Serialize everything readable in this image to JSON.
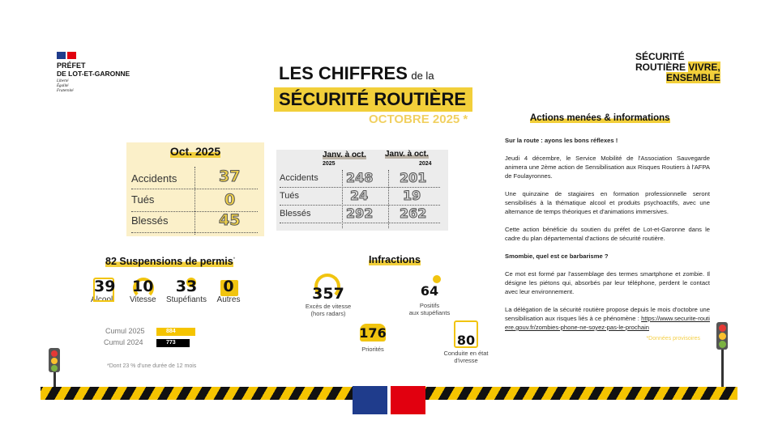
{
  "header": {
    "prefet_line1": "PRÉFET",
    "prefet_line2": "DE LOT-ET-GARONNE",
    "motto": [
      "Liberté",
      "Égalité",
      "Fraternité"
    ],
    "title_line1": "LES CHIFFRES",
    "title_small": "de la",
    "title_line2": "SÉCURITÉ ROUTIÈRE",
    "period": "OCTOBRE 2025 *",
    "logo": {
      "line1": "SÉCURITÉ",
      "line2": "ROUTIÈRE",
      "line2b": "VIVRE,",
      "line3": "ENSEMBLE"
    }
  },
  "month_table": {
    "title": "Oct. 2025",
    "rows": [
      {
        "label": "Accidents",
        "value": "37"
      },
      {
        "label": "Tués",
        "value": "0"
      },
      {
        "label": "Blessés",
        "value": "45"
      }
    ]
  },
  "cumul_table": {
    "col1": "Janv. à oct.",
    "col1_year": "2025",
    "col2": "Janv. à oct.",
    "col2_year": "2024",
    "rows": [
      {
        "label": "Accidents",
        "v2025": "248",
        "v2024": "201"
      },
      {
        "label": "Tués",
        "v2025": "24",
        "v2024": "19"
      },
      {
        "label": "Blessés",
        "v2025": "292",
        "v2024": "262"
      }
    ]
  },
  "suspensions": {
    "title": "82 Suspensions de permis",
    "asterisk": "*",
    "items": [
      {
        "value": "39",
        "label": "Alcool",
        "icon": "bottles-icon"
      },
      {
        "value": "10",
        "label": "Vitesse",
        "icon": "speedometer-icon"
      },
      {
        "value": "33",
        "label": "Stupéfiants",
        "icon": "syringe-icon"
      },
      {
        "value": "0",
        "label": "Autres",
        "icon": "id-card-icon"
      }
    ],
    "cumul": [
      {
        "label": "Cumul 2025",
        "value": "884",
        "color": "#f5c400"
      },
      {
        "label": "Cumul 2024",
        "value": "773",
        "color": "#000000"
      }
    ],
    "footnote": "*Dont 23 % d'une durée de 12 mois"
  },
  "infractions": {
    "title": "Infractions",
    "items": [
      {
        "value": "357",
        "label1": "Excès de vitesse",
        "label2": "(hors radars)"
      },
      {
        "value": "64",
        "label1": "Positifs",
        "label2": "aux stupéfiants"
      },
      {
        "value": "176",
        "label1": "Priorités",
        "label2": ""
      },
      {
        "value": "80",
        "label1": "Conduite en état",
        "label2": "d'ivresse"
      }
    ]
  },
  "actions": {
    "title": "Actions menées & informations",
    "h1": "Sur la route : ayons les bons réflexes !",
    "p1": "Jeudi 4 décembre, le Service Mobilité de l'Association Sauvegarde animera une 2ème action de Sensibilisation aux Risques Routiers à l'AFPA de Foulayronnes.",
    "p2": "Une quinzaine de stagiaires en formation professionnelle seront sensibilisés à la thématique alcool et produits psychoactifs, avec une alternance de temps théoriques et d'animations immersives.",
    "p3": "Cette action bénéficie du soutien du préfet de Lot-et-Garonne dans le cadre du plan départemental d'actions de sécurité routière.",
    "h2": "Smombie, quel est ce barbarisme ?",
    "p4": "Ce mot est formé par l'assemblage des termes smartphone et zombie. Il désigne les piétons qui, absorbés par leur téléphone, perdent le contact avec leur environnement.",
    "p5": "La délégation de la sécurité routière propose depuis le mois d'octobre une sensibilisation aux risques liés à ce phénomène :",
    "link": "https://www.securite-routiere.gouv.fr/zombies-phone-ne-soyez-pas-le-prochain",
    "note": "*Données provisoires"
  },
  "colors": {
    "accent": "#f2cf3a",
    "month_bg": "#fbf0c9",
    "cumul_bg": "#ececec"
  }
}
